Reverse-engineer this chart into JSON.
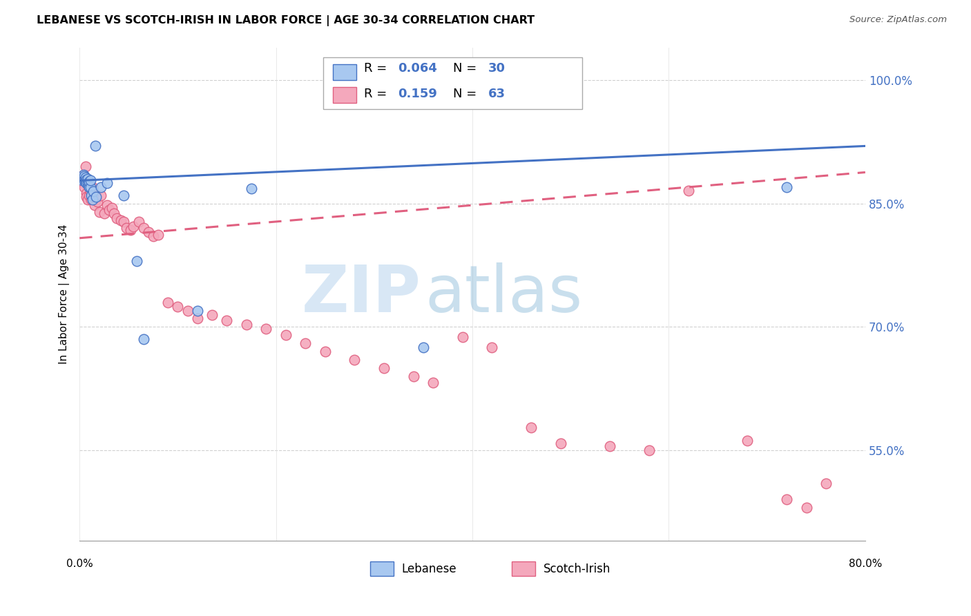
{
  "title": "LEBANESE VS SCOTCH-IRISH IN LABOR FORCE | AGE 30-34 CORRELATION CHART",
  "source": "Source: ZipAtlas.com",
  "ylabel": "In Labor Force | Age 30-34",
  "xlim": [
    0.0,
    0.8
  ],
  "ylim": [
    0.44,
    1.04
  ],
  "yticks": [
    0.55,
    0.7,
    0.85,
    1.0
  ],
  "ytick_labels": [
    "55.0%",
    "70.0%",
    "85.0%",
    "100.0%"
  ],
  "blue_color": "#A8C8F0",
  "pink_color": "#F4A8BC",
  "trend_blue": "#4472C4",
  "trend_pink": "#E06080",
  "watermark_zip": "ZIP",
  "watermark_atlas": "atlas",
  "blue_line_x": [
    0.0,
    0.8
  ],
  "blue_line_y": [
    0.878,
    0.92
  ],
  "pink_line_x": [
    0.0,
    0.8
  ],
  "pink_line_y": [
    0.808,
    0.888
  ],
  "blue_points_x": [
    0.002,
    0.003,
    0.004,
    0.005,
    0.005,
    0.006,
    0.006,
    0.007,
    0.007,
    0.008,
    0.008,
    0.009,
    0.01,
    0.01,
    0.011,
    0.011,
    0.012,
    0.013,
    0.014,
    0.016,
    0.017,
    0.022,
    0.028,
    0.045,
    0.058,
    0.065,
    0.12,
    0.175,
    0.35,
    0.72
  ],
  "blue_points_y": [
    0.88,
    0.878,
    0.885,
    0.883,
    0.878,
    0.876,
    0.882,
    0.879,
    0.875,
    0.875,
    0.88,
    0.872,
    0.87,
    0.877,
    0.87,
    0.878,
    0.86,
    0.855,
    0.865,
    0.92,
    0.858,
    0.87,
    0.875,
    0.86,
    0.78,
    0.685,
    0.72,
    0.868,
    0.675,
    0.87
  ],
  "pink_points_x": [
    0.002,
    0.003,
    0.004,
    0.005,
    0.005,
    0.006,
    0.007,
    0.007,
    0.008,
    0.009,
    0.01,
    0.011,
    0.012,
    0.013,
    0.014,
    0.015,
    0.016,
    0.017,
    0.018,
    0.02,
    0.022,
    0.025,
    0.028,
    0.03,
    0.033,
    0.035,
    0.038,
    0.042,
    0.045,
    0.048,
    0.052,
    0.055,
    0.06,
    0.065,
    0.07,
    0.075,
    0.08,
    0.09,
    0.1,
    0.11,
    0.12,
    0.135,
    0.15,
    0.17,
    0.19,
    0.21,
    0.23,
    0.25,
    0.28,
    0.31,
    0.34,
    0.36,
    0.39,
    0.42,
    0.46,
    0.49,
    0.54,
    0.58,
    0.62,
    0.68,
    0.72,
    0.74,
    0.76
  ],
  "pink_points_y": [
    0.883,
    0.877,
    0.875,
    0.88,
    0.87,
    0.895,
    0.862,
    0.858,
    0.855,
    0.875,
    0.86,
    0.865,
    0.855,
    0.87,
    0.855,
    0.848,
    0.86,
    0.855,
    0.852,
    0.84,
    0.86,
    0.838,
    0.848,
    0.842,
    0.845,
    0.838,
    0.832,
    0.83,
    0.828,
    0.82,
    0.818,
    0.822,
    0.828,
    0.82,
    0.815,
    0.81,
    0.812,
    0.73,
    0.725,
    0.72,
    0.71,
    0.715,
    0.708,
    0.703,
    0.698,
    0.69,
    0.68,
    0.67,
    0.66,
    0.65,
    0.64,
    0.632,
    0.688,
    0.675,
    0.578,
    0.558,
    0.555,
    0.55,
    0.866,
    0.562,
    0.49,
    0.48,
    0.51
  ]
}
